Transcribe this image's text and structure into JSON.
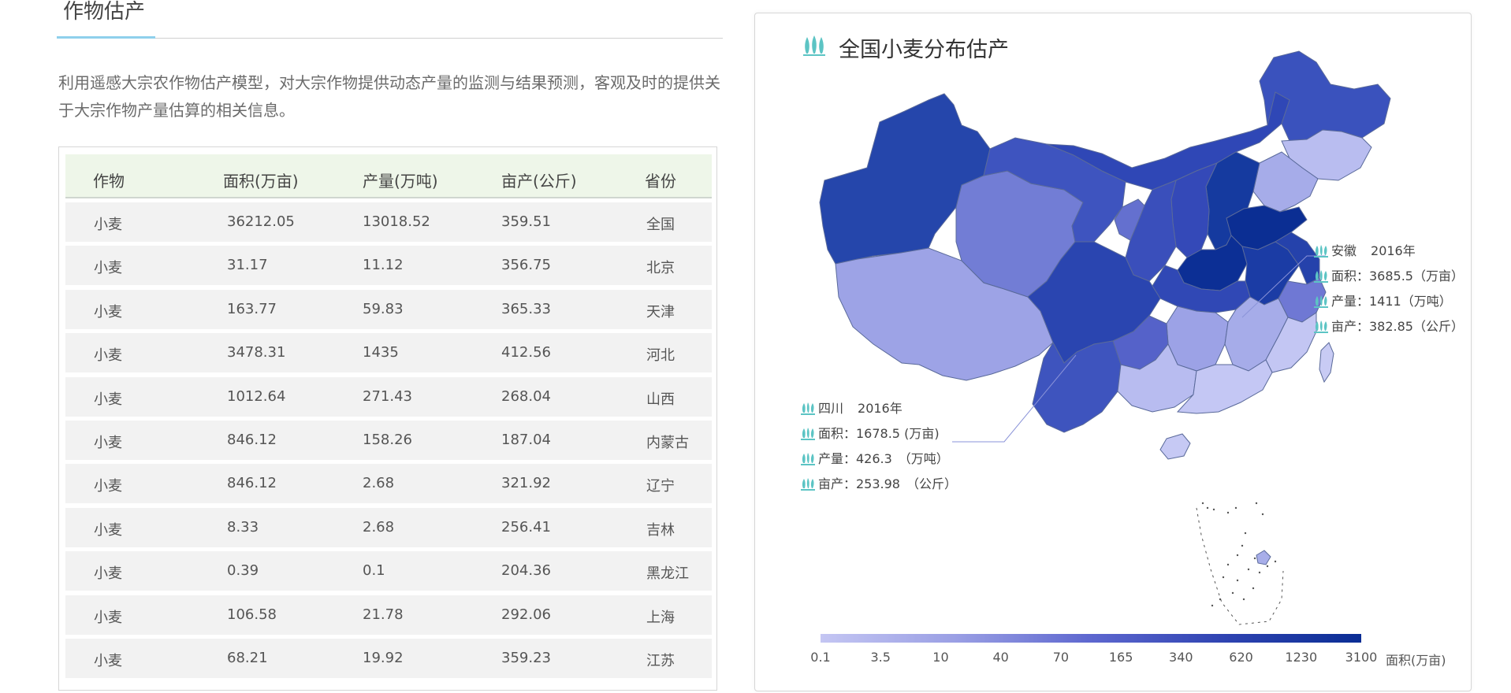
{
  "section": {
    "title": "作物估产",
    "intro": "利用遥感大宗农作物估产模型，对大宗作物提供动态产量的监测与结果预测，客观及时的提供关于大宗作物产量估算的相关信息。"
  },
  "table": {
    "headers": [
      "作物",
      "面积(万亩)",
      "产量(万吨)",
      "亩产(公斤)",
      "省份"
    ],
    "rows": [
      [
        "小麦",
        "36212.05",
        "13018.52",
        "359.51",
        "全国"
      ],
      [
        "小麦",
        "31.17",
        "11.12",
        "356.75",
        "北京"
      ],
      [
        "小麦",
        "163.77",
        "59.83",
        "365.33",
        "天津"
      ],
      [
        "小麦",
        "3478.31",
        "1435",
        "412.56",
        "河北"
      ],
      [
        "小麦",
        "1012.64",
        "271.43",
        "268.04",
        "山西"
      ],
      [
        "小麦",
        "846.12",
        "158.26",
        "187.04",
        "内蒙古"
      ],
      [
        "小麦",
        "846.12",
        "2.68",
        "321.92",
        "辽宁"
      ],
      [
        "小麦",
        "8.33",
        "2.68",
        "256.41",
        "吉林"
      ],
      [
        "小麦",
        "0.39",
        "0.1",
        "204.36",
        "黑龙江"
      ],
      [
        "小麦",
        "106.58",
        "21.78",
        "292.06",
        "上海"
      ],
      [
        "小麦",
        "68.21",
        "19.92",
        "359.23",
        "江苏"
      ]
    ]
  },
  "map": {
    "title": "全国小麦分布估产",
    "title_icon": "wheat-icon",
    "tooltip_anhui": {
      "region": "安徽",
      "year": "2016年",
      "area": "面积：3685.5（万亩）",
      "output": "产量：1411（万吨）",
      "yield": "亩产：382.85（公斤）"
    },
    "tooltip_sichuan": {
      "region": "四川",
      "year": "2016年",
      "area": "面积：1678.5 (万亩)",
      "output": "产量：426.3　（万吨）",
      "yield": "亩产：253.98　（公斤）"
    },
    "legend": {
      "ticks": [
        "0.1",
        "3.5",
        "10",
        "40",
        "70",
        "165",
        "340",
        "620",
        "1230",
        "3100"
      ],
      "unit": "面积(万亩)",
      "colors": [
        "#c4c6f3",
        "#9a9fe4",
        "#5d67cf",
        "#2e43b1",
        "#0a2d94"
      ]
    }
  },
  "colors": {
    "accent": "#8fd0ec",
    "table_header_bg": "#eef6e9",
    "row_bg": "#f2f2f2",
    "wheat_icon": "#5cc4c4"
  }
}
